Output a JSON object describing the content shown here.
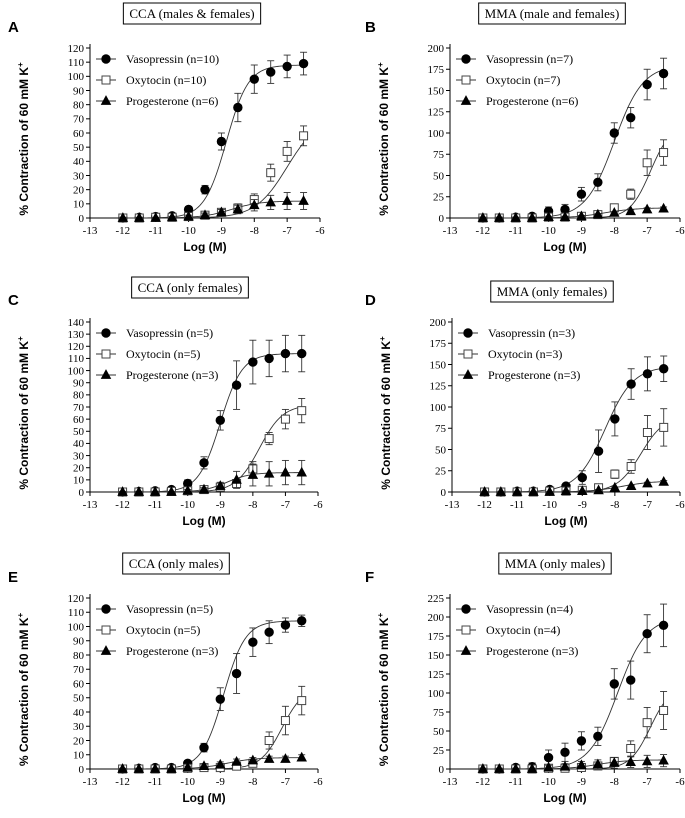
{
  "chart_data": [
    {
      "panel": "A",
      "type": "scatter",
      "title": "CCA (males & females)",
      "xlabel": "Log (M)",
      "ylabel": "% Contraction of 60 mM K",
      "ylabel_sup": "+",
      "xlim": [
        -13,
        -6
      ],
      "xticks": [
        -13,
        -12,
        -11,
        -10,
        -9,
        -8,
        -7,
        -6
      ],
      "ylim": [
        0,
        120
      ],
      "yticks": [
        0,
        10,
        20,
        30,
        40,
        50,
        60,
        70,
        80,
        90,
        100,
        110,
        120
      ],
      "legend_position": "top-left",
      "x": [
        -12,
        -11.5,
        -11,
        -10.5,
        -10,
        -9.5,
        -9,
        -8.5,
        -8,
        -7.5,
        -7,
        -6.5
      ],
      "series": [
        {
          "name": "Vasopressin (n=10)",
          "marker": "filled-circle",
          "values": [
            0,
            0.5,
            1,
            1.5,
            6,
            20,
            54,
            78,
            98,
            103,
            107,
            109
          ],
          "errors": [
            1,
            1,
            1,
            1.5,
            2,
            3,
            6,
            10,
            10,
            8,
            8,
            8
          ],
          "fit": {
            "bottom": 0,
            "top": 108,
            "logec50": -8.85,
            "hill": 1.3
          }
        },
        {
          "name": "Oxytocin (n=10)",
          "marker": "open-square",
          "values": [
            0,
            0,
            0.5,
            0.5,
            1,
            2,
            4,
            7,
            13,
            32,
            47,
            58
          ],
          "errors": [
            1,
            1,
            1,
            1,
            1,
            1.5,
            2,
            3,
            4,
            6,
            7,
            7
          ],
          "fit": {
            "bottom": 0,
            "top": 72,
            "logec50": -7.0,
            "hill": 0.9
          }
        },
        {
          "name": "Progesterone (n=6)",
          "marker": "filled-triangle",
          "values": [
            0,
            0,
            0,
            0.5,
            1,
            2,
            4,
            6,
            9,
            11,
            12,
            12
          ],
          "errors": [
            0.5,
            0.5,
            0.5,
            0.5,
            1,
            1.5,
            2,
            3,
            4,
            5,
            6,
            6
          ],
          "fit": {
            "bottom": 0,
            "top": 12,
            "logec50": -8.7,
            "hill": 1.0
          }
        }
      ]
    },
    {
      "panel": "B",
      "type": "scatter",
      "title": "MMA (male and females)",
      "xlabel": "Log (M)",
      "ylabel": "% Contraction of 60 mM K",
      "ylabel_sup": "+",
      "xlim": [
        -13,
        -6
      ],
      "xticks": [
        -13,
        -12,
        -11,
        -10,
        -9,
        -8,
        -7,
        -6
      ],
      "ylim": [
        0,
        200
      ],
      "yticks": [
        0,
        25,
        50,
        75,
        100,
        125,
        150,
        175,
        200
      ],
      "legend_position": "top-left",
      "x": [
        -12,
        -11.5,
        -11,
        -10.5,
        -10,
        -9.5,
        -9,
        -8.5,
        -8,
        -7.5,
        -7,
        -6.5
      ],
      "series": [
        {
          "name": "Vasopressin (n=7)",
          "marker": "filled-circle",
          "values": [
            0,
            0,
            1,
            2,
            8,
            10,
            28,
            42,
            100,
            118,
            157,
            170
          ],
          "errors": [
            2,
            2,
            2,
            3,
            5,
            6,
            8,
            10,
            12,
            12,
            18,
            18
          ],
          "fit": {
            "bottom": 0,
            "top": 180,
            "logec50": -8.0,
            "hill": 1.0
          }
        },
        {
          "name": "Oxytocin (n=7)",
          "marker": "open-square",
          "values": [
            0,
            0,
            0,
            0,
            1,
            1,
            2,
            4,
            12,
            28,
            65,
            77
          ],
          "errors": [
            1,
            1,
            1,
            1,
            1,
            1,
            2,
            2,
            3,
            6,
            15,
            15
          ],
          "fit": {
            "bottom": 0,
            "top": 110,
            "logec50": -6.9,
            "hill": 1.4
          }
        },
        {
          "name": "Progesterone (n=6)",
          "marker": "filled-triangle",
          "values": [
            0,
            0,
            0,
            0,
            1,
            1,
            2,
            4,
            6,
            8,
            10,
            11
          ],
          "errors": [
            1,
            1,
            1,
            1,
            1,
            1,
            1,
            1,
            1,
            1.5,
            2,
            2
          ],
          "fit": {
            "bottom": 0,
            "top": 12,
            "logec50": -8.3,
            "hill": 0.9
          }
        }
      ]
    },
    {
      "panel": "C",
      "type": "scatter",
      "title": "CCA (only females)",
      "xlabel": "Log (M)",
      "ylabel": "% Contraction of 60 mM K",
      "ylabel_sup": "+",
      "xlim": [
        -13,
        -6
      ],
      "xticks": [
        -13,
        -12,
        -11,
        -10,
        -9,
        -8,
        -7,
        -6
      ],
      "ylim": [
        0,
        140
      ],
      "yticks": [
        0,
        10,
        20,
        30,
        40,
        50,
        60,
        70,
        80,
        90,
        100,
        110,
        120,
        130,
        140
      ],
      "legend_position": "top-left",
      "x": [
        -12,
        -11.5,
        -11,
        -10.5,
        -10,
        -9.5,
        -9,
        -8.5,
        -8,
        -7.5,
        -7,
        -6.5
      ],
      "series": [
        {
          "name": "Vasopressin (n=5)",
          "marker": "filled-circle",
          "values": [
            0,
            0.5,
            1,
            2,
            7,
            24,
            59,
            88,
            107,
            110,
            114,
            114
          ],
          "errors": [
            1,
            1,
            1,
            1.5,
            3,
            5,
            8,
            20,
            18,
            15,
            15,
            15
          ],
          "fit": {
            "bottom": 0,
            "top": 114,
            "logec50": -9.0,
            "hill": 1.3
          }
        },
        {
          "name": "Oxytocin (n=5)",
          "marker": "open-square",
          "values": [
            0,
            0,
            0,
            0.5,
            1,
            2,
            4,
            7,
            19,
            44,
            60,
            67
          ],
          "errors": [
            1,
            1,
            1,
            1,
            1,
            1.5,
            2,
            3,
            6,
            5,
            8,
            10
          ],
          "fit": {
            "bottom": 0,
            "top": 72,
            "logec50": -7.8,
            "hill": 1.2
          }
        },
        {
          "name": "Progesterone (n=3)",
          "marker": "filled-triangle",
          "values": [
            0,
            0,
            0,
            0,
            1,
            2,
            5,
            10,
            14,
            15,
            16,
            16
          ],
          "errors": [
            0.5,
            0.5,
            0.5,
            0.5,
            1,
            1.5,
            3,
            7,
            9,
            10,
            10,
            10
          ],
          "fit": {
            "bottom": 0,
            "top": 16,
            "logec50": -8.8,
            "hill": 1.2
          }
        }
      ]
    },
    {
      "panel": "D",
      "type": "scatter",
      "title": "MMA (only females)",
      "xlabel": "Log (M)",
      "ylabel": "% Contraction of 60 mM K",
      "ylabel_sup": "+",
      "xlim": [
        -13,
        -6
      ],
      "xticks": [
        -13,
        -12,
        -11,
        -10,
        -9,
        -8,
        -7,
        -6
      ],
      "ylim": [
        0,
        200
      ],
      "yticks": [
        0,
        25,
        50,
        75,
        100,
        125,
        150,
        175,
        200
      ],
      "legend_position": "top-left",
      "x": [
        -12,
        -11.5,
        -11,
        -10.5,
        -10,
        -9.5,
        -9,
        -8.5,
        -8,
        -7.5,
        -7,
        -6.5
      ],
      "series": [
        {
          "name": "Vasopressin (n=3)",
          "marker": "filled-circle",
          "values": [
            0,
            0,
            1,
            1,
            3,
            7,
            17,
            48,
            86,
            127,
            139,
            145
          ],
          "errors": [
            1,
            1,
            1,
            1,
            2,
            3,
            8,
            25,
            20,
            18,
            20,
            15
          ],
          "fit": {
            "bottom": 0,
            "top": 148,
            "logec50": -8.3,
            "hill": 1.0
          }
        },
        {
          "name": "Oxytocin (n=3)",
          "marker": "open-square",
          "values": [
            0,
            0,
            0,
            0,
            1,
            1,
            2,
            5,
            21,
            30,
            70,
            76
          ],
          "errors": [
            1,
            1,
            1,
            1,
            1,
            1,
            1,
            3,
            5,
            8,
            20,
            22
          ],
          "fit": {
            "bottom": 0,
            "top": 90,
            "logec50": -7.2,
            "hill": 1.2
          }
        },
        {
          "name": "Progesterone (n=3)",
          "marker": "filled-triangle",
          "values": [
            0,
            0,
            0,
            0,
            0,
            1,
            1,
            2,
            5,
            7,
            10,
            12
          ],
          "errors": [
            0.5,
            0.5,
            0.5,
            0.5,
            0.5,
            0.5,
            0.5,
            1,
            1,
            1,
            1.5,
            1.5
          ],
          "fit": {
            "bottom": 0,
            "top": 13,
            "logec50": -7.8,
            "hill": 0.9
          }
        }
      ]
    },
    {
      "panel": "E",
      "type": "scatter",
      "title": "CCA (only males)",
      "xlabel": "Log (M)",
      "ylabel": "% Contraction of 60 mM K",
      "ylabel_sup": "+",
      "xlim": [
        -13,
        -6
      ],
      "xticks": [
        -13,
        -12,
        -11,
        -10,
        -9,
        -8,
        -7,
        -6
      ],
      "ylim": [
        0,
        120
      ],
      "yticks": [
        0,
        10,
        20,
        30,
        40,
        50,
        60,
        70,
        80,
        90,
        100,
        110,
        120
      ],
      "legend_position": "top-left",
      "x": [
        -12,
        -11.5,
        -11,
        -10.5,
        -10,
        -9.5,
        -9,
        -8.5,
        -8,
        -7.5,
        -7,
        -6.5
      ],
      "series": [
        {
          "name": "Vasopressin (n=5)",
          "marker": "filled-circle",
          "values": [
            0,
            0.5,
            1,
            1,
            4,
            15,
            49,
            67,
            89,
            96,
            101,
            104
          ],
          "errors": [
            1,
            1,
            1,
            1,
            2,
            3,
            8,
            14,
            10,
            8,
            5,
            4
          ],
          "fit": {
            "bottom": 0,
            "top": 104,
            "logec50": -8.9,
            "hill": 1.3
          }
        },
        {
          "name": "Oxytocin (n=5)",
          "marker": "open-square",
          "values": [
            0,
            0,
            0,
            0,
            0.5,
            1,
            1,
            2,
            4,
            20,
            34,
            48
          ],
          "errors": [
            0.5,
            0.5,
            0.5,
            0.5,
            0.5,
            1,
            1,
            1,
            2,
            6,
            10,
            10
          ],
          "fit": {
            "bottom": 0,
            "top": 58,
            "logec50": -7.1,
            "hill": 1.3
          }
        },
        {
          "name": "Progesterone (n=3)",
          "marker": "filled-triangle",
          "values": [
            0,
            0,
            0,
            0,
            1,
            2,
            3,
            5,
            6,
            7,
            7,
            8
          ],
          "errors": [
            0.5,
            0.5,
            0.5,
            0.5,
            1,
            1.5,
            2,
            2,
            2,
            2,
            2,
            2
          ],
          "fit": {
            "bottom": 0,
            "top": 8,
            "logec50": -8.8,
            "hill": 1.0
          }
        }
      ]
    },
    {
      "panel": "F",
      "type": "scatter",
      "title": "MMA (only males)",
      "xlabel": "Log (M)",
      "ylabel": "% Contraction of 60 mM K",
      "ylabel_sup": "+",
      "xlim": [
        -13,
        -6
      ],
      "xticks": [
        -13,
        -12,
        -11,
        -10,
        -9,
        -8,
        -7,
        -6
      ],
      "ylim": [
        0,
        225
      ],
      "yticks": [
        0,
        25,
        50,
        75,
        100,
        125,
        150,
        175,
        200,
        225
      ],
      "legend_position": "top-left",
      "x": [
        -12,
        -11.5,
        -11,
        -10.5,
        -10,
        -9.5,
        -9,
        -8.5,
        -8,
        -7.5,
        -7,
        -6.5
      ],
      "series": [
        {
          "name": "Vasopressin (n=4)",
          "marker": "filled-circle",
          "values": [
            0,
            0,
            2,
            3,
            15,
            22,
            37,
            43,
            112,
            117,
            178,
            189
          ],
          "errors": [
            2,
            2,
            3,
            5,
            10,
            12,
            12,
            12,
            20,
            25,
            25,
            28
          ],
          "fit": {
            "bottom": 0,
            "top": 200,
            "logec50": -7.9,
            "hill": 1.0
          }
        },
        {
          "name": "Oxytocin (n=4)",
          "marker": "open-square",
          "values": [
            0,
            0,
            0,
            0,
            1,
            1,
            2,
            4,
            10,
            27,
            61,
            77
          ],
          "errors": [
            1,
            1,
            1,
            1,
            1,
            1,
            2,
            3,
            5,
            10,
            20,
            25
          ],
          "fit": {
            "bottom": 0,
            "top": 110,
            "logec50": -6.9,
            "hill": 1.4
          }
        },
        {
          "name": "Progesterone (n=3)",
          "marker": "filled-triangle",
          "values": [
            0,
            0,
            0,
            0,
            2,
            3,
            5,
            6,
            8,
            9,
            10,
            11
          ],
          "errors": [
            1,
            1,
            1,
            1,
            3,
            4,
            5,
            6,
            7,
            7,
            8,
            8
          ],
          "fit": {
            "bottom": 0,
            "top": 12,
            "logec50": -8.5,
            "hill": 1.0
          }
        }
      ]
    }
  ]
}
